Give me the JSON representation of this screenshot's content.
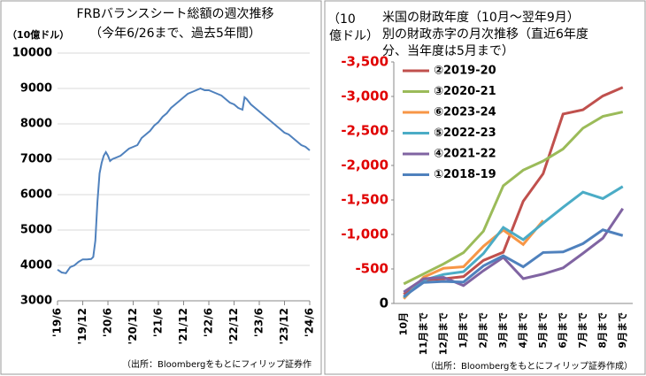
{
  "chart_data": [
    {
      "type": "line",
      "title": "FRBバランスシート総額の週次推移",
      "subtitle": "（今年6/26まで、過去5年間）",
      "y_label": "（10億ドル）",
      "x": [
        0,
        1,
        2,
        3,
        4,
        5,
        6,
        7,
        8,
        8.5,
        9,
        9.5,
        10,
        10.5,
        11,
        11.5,
        12,
        12.5,
        13,
        14,
        15,
        16,
        17,
        18,
        19,
        20,
        21,
        22,
        23,
        24,
        25,
        26,
        27,
        28,
        29,
        30,
        31,
        32,
        33,
        34,
        35,
        36,
        37,
        38,
        39,
        40,
        41,
        42,
        43,
        44,
        44.5,
        45,
        46,
        47,
        48,
        49,
        50,
        51,
        52,
        53,
        54,
        55,
        56,
        57,
        58,
        59,
        60
      ],
      "values": [
        3880,
        3800,
        3780,
        3950,
        4000,
        4100,
        4170,
        4170,
        4180,
        4240,
        4700,
        5800,
        6600,
        6900,
        7100,
        7200,
        7100,
        6950,
        7000,
        7050,
        7100,
        7200,
        7300,
        7350,
        7400,
        7600,
        7700,
        7800,
        7950,
        8050,
        8200,
        8300,
        8450,
        8550,
        8650,
        8750,
        8850,
        8900,
        8950,
        9000,
        8950,
        8950,
        8900,
        8850,
        8800,
        8700,
        8600,
        8550,
        8450,
        8400,
        8750,
        8700,
        8550,
        8450,
        8350,
        8250,
        8150,
        8050,
        7950,
        7850,
        7750,
        7700,
        7600,
        7500,
        7400,
        7350,
        7250
      ],
      "color": "#4f81bd",
      "xlim": [
        0,
        60
      ],
      "xticks": [
        {
          "value": 0,
          "label": "'19/6"
        },
        {
          "value": 6,
          "label": "'19/12"
        },
        {
          "value": 12,
          "label": "'20/6"
        },
        {
          "value": 18,
          "label": "'20/12"
        },
        {
          "value": 24,
          "label": "'21/6"
        },
        {
          "value": 30,
          "label": "'21/12"
        },
        {
          "value": 36,
          "label": "'22/6"
        },
        {
          "value": 42,
          "label": "'22/12"
        },
        {
          "value": 48,
          "label": "'23/6"
        },
        {
          "value": 54,
          "label": "'23/12"
        },
        {
          "value": 60,
          "label": "'24/6"
        }
      ],
      "ylim": [
        3000,
        10000
      ],
      "yticks": [
        3000,
        4000,
        5000,
        6000,
        7000,
        8000,
        9000,
        10000
      ],
      "grid": true,
      "source": "（出所：Bloombergをもとにフィリップ証券作"
    },
    {
      "type": "line",
      "title": "米国の財政年度（10月～翌年9月）別の財政赤字の月次推移（直近6年度分、当年度は5月まで）",
      "y_label": "（10億ドル）",
      "categories": [
        "10月",
        "11月まで",
        "12月まで",
        "1月まで",
        "2月まで",
        "3月まで",
        "4月まで",
        "5月まで",
        "6月まで",
        "7月まで",
        "8月まで",
        "9月まで"
      ],
      "series": [
        {
          "name": "②2019-20",
          "color": "#c0504d",
          "values": [
            -134,
            -343,
            -357,
            -389,
            -624,
            -743,
            -1481,
            -1880,
            -2744,
            -2807,
            -3007,
            -3132
          ]
        },
        {
          "name": "③2020-21",
          "color": "#9bbb59",
          "values": [
            -284,
            -429,
            -573,
            -736,
            -1047,
            -1706,
            -1932,
            -2064,
            -2238,
            -2540,
            -2711,
            -2775
          ]
        },
        {
          "name": "⑥2023-24",
          "color": "#f79646",
          "values": [
            -67,
            -381,
            -510,
            -532,
            -828,
            -1064,
            -855,
            -1202,
            null,
            null,
            null,
            null
          ]
        },
        {
          "name": "⑤2022-23",
          "color": "#4bacc6",
          "values": [
            -88,
            -337,
            -421,
            -460,
            -723,
            -1101,
            -925,
            -1164,
            -1393,
            -1613,
            -1520,
            -1695
          ]
        },
        {
          "name": "④2021-22",
          "color": "#8064a2",
          "values": [
            -165,
            -357,
            -378,
            -259,
            -475,
            -668,
            -360,
            -426,
            -515,
            -726,
            -946,
            -1375
          ]
        },
        {
          "name": "①2018-19",
          "color": "#4f81bd",
          "values": [
            -100,
            -305,
            -319,
            -310,
            -544,
            -691,
            -531,
            -738,
            -747,
            -867,
            -1067,
            -984
          ]
        }
      ],
      "ylim": [
        0,
        -3500
      ],
      "yticks": [
        0,
        -500,
        {
          "value": -1000,
          "label": "-1,000"
        },
        {
          "value": -1500,
          "label": "-1,500"
        },
        {
          "value": -2000,
          "label": "-2,000"
        },
        {
          "value": -2500,
          "label": "-2,500"
        },
        {
          "value": -3000,
          "label": "-3,000"
        },
        {
          "value": -3500,
          "label": "-3,500"
        }
      ],
      "grid": false,
      "tick_color": "#e00000",
      "legend": "upper left",
      "source": "（出所：Bloombergをもとにフィリップ証券作成）"
    }
  ]
}
